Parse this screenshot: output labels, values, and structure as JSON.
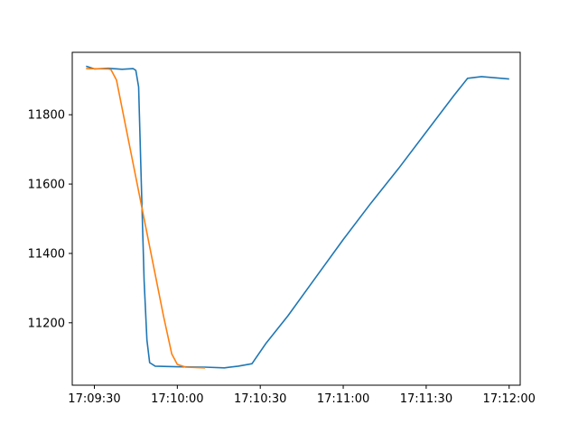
{
  "chart_data": {
    "type": "line",
    "title": "",
    "xlabel": "",
    "ylabel": "",
    "grid": false,
    "legend": "none",
    "xlim": [
      "17:09:22",
      "17:12:04"
    ],
    "ylim": [
      11020,
      11980
    ],
    "x_ticks": [
      "17:09:30",
      "17:10:00",
      "17:10:30",
      "17:11:00",
      "17:11:30",
      "17:12:00"
    ],
    "y_ticks": [
      11200,
      11400,
      11600,
      11800
    ],
    "series": [
      {
        "color": "#1f77b4",
        "points": [
          [
            "17:09:27",
            11940
          ],
          [
            "17:09:30",
            11932
          ],
          [
            "17:09:35",
            11934
          ],
          [
            "17:09:40",
            11931
          ],
          [
            "17:09:44",
            11933
          ],
          [
            "17:09:45",
            11928
          ],
          [
            "17:09:46",
            11880
          ],
          [
            "17:09:47",
            11600
          ],
          [
            "17:09:48",
            11320
          ],
          [
            "17:09:49",
            11150
          ],
          [
            "17:09:50",
            11085
          ],
          [
            "17:09:52",
            11075
          ],
          [
            "17:10:00",
            11073
          ],
          [
            "17:10:10",
            11072
          ],
          [
            "17:10:17",
            11070
          ],
          [
            "17:10:22",
            11075
          ],
          [
            "17:10:27",
            11082
          ],
          [
            "17:10:32",
            11140
          ],
          [
            "17:10:40",
            11220
          ],
          [
            "17:10:50",
            11330
          ],
          [
            "17:11:00",
            11440
          ],
          [
            "17:11:10",
            11545
          ],
          [
            "17:11:20",
            11645
          ],
          [
            "17:11:30",
            11750
          ],
          [
            "17:11:40",
            11855
          ],
          [
            "17:11:45",
            11905
          ],
          [
            "17:11:50",
            11910
          ],
          [
            "17:12:00",
            11903
          ]
        ]
      },
      {
        "color": "#ff7f0e",
        "points": [
          [
            "17:09:27",
            11933
          ],
          [
            "17:09:35",
            11932
          ],
          [
            "17:09:36",
            11930
          ],
          [
            "17:09:38",
            11900
          ],
          [
            "17:09:40",
            11820
          ],
          [
            "17:09:45",
            11620
          ],
          [
            "17:09:50",
            11420
          ],
          [
            "17:09:55",
            11220
          ],
          [
            "17:09:58",
            11110
          ],
          [
            "17:10:00",
            11080
          ],
          [
            "17:10:03",
            11072
          ],
          [
            "17:10:10",
            11070
          ]
        ]
      }
    ]
  }
}
